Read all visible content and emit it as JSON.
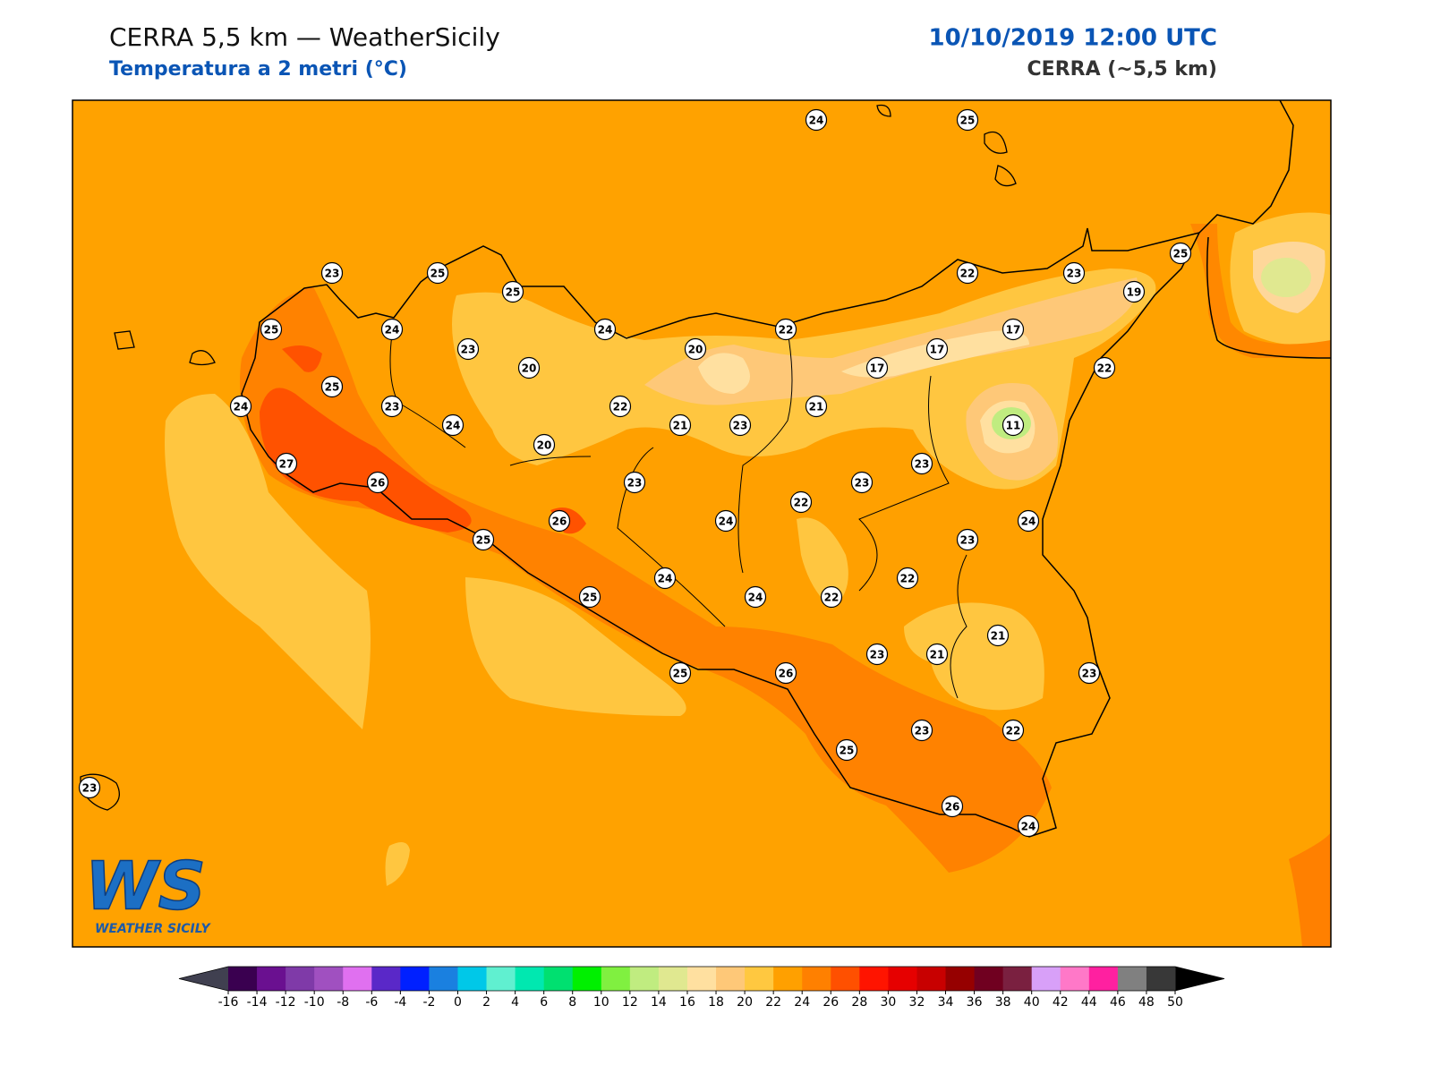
{
  "header": {
    "title": "CERRA 5,5 km — WeatherSicily",
    "subtitle": "Temperatura a 2 metri (°C)",
    "datetime": "10/10/2019 12:00 UTC",
    "model": "CERRA (~5,5 km)"
  },
  "logo": {
    "mark": "WS",
    "name": "WEATHER SICILY"
  },
  "stations": [
    24,
    25,
    23,
    25,
    25,
    22,
    23,
    25,
    19,
    25,
    24,
    24,
    22,
    17,
    23,
    20,
    17,
    20,
    17,
    22,
    25,
    24,
    23,
    22,
    21,
    24,
    21,
    23,
    11,
    20,
    23,
    27,
    26,
    23,
    23,
    22,
    26,
    24,
    24,
    25,
    23,
    24,
    22,
    25,
    24,
    22,
    21,
    23,
    21,
    25,
    26,
    23,
    23,
    22,
    25,
    23,
    26,
    24
  ],
  "colorbar": {
    "ticks": [
      -16,
      -14,
      -12,
      -10,
      -8,
      -6,
      -4,
      -2,
      0,
      2,
      4,
      6,
      8,
      10,
      12,
      14,
      16,
      18,
      20,
      22,
      24,
      26,
      28,
      30,
      32,
      34,
      36,
      38,
      40,
      42,
      44,
      46,
      48,
      50
    ],
    "colors": [
      "#3a0050",
      "#6a1090",
      "#7f3aa8",
      "#a050c0",
      "#e070f0",
      "#5a28c8",
      "#0020ff",
      "#1a80e0",
      "#00c8e8",
      "#60f0d0",
      "#00e8b0",
      "#00e070",
      "#00f000",
      "#80f040",
      "#c0ec80",
      "#e0e890",
      "#ffe0a0",
      "#fec878",
      "#ffc840",
      "#ffa000",
      "#ff8000",
      "#ff5000",
      "#ff1400",
      "#e60000",
      "#c80000",
      "#960000",
      "#700020",
      "#7a2040",
      "#d8a0f8",
      "#ff78c8",
      "#ff20a0",
      "#808080",
      "#383838"
    ],
    "under_color": "#404050",
    "over_color": "#000000"
  }
}
